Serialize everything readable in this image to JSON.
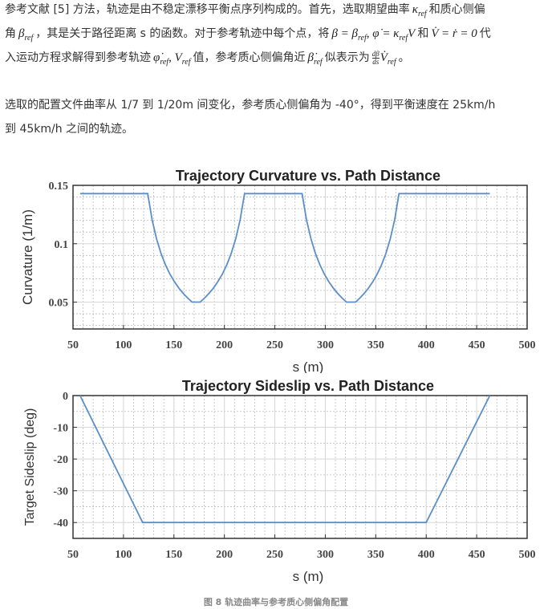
{
  "paragraph1": {
    "l1_text": "参考文献 [5] 方法，轨迹是由不稳定漂移平衡点序列构成的。首先，选取期望曲率",
    "kappa": "κ",
    "ref": "ref",
    "l1_tail": "和质心侧偏",
    "l2_head": "角",
    "beta": "β",
    "l2_text": "，其是关于路径距离 s 的函数。对于参考轨迹中每个点，将",
    "eq1_a": "β = β",
    "eq1_b": ", φ̇ = κ",
    "eq1_c": "V",
    "l2_and": "和",
    "eq2": "V̇ = ṙ = 0",
    "l2_tail": "代",
    "l3_head": "入运动方程求解得到参考轨迹",
    "phidot": "φ̇",
    "eq3_sep": ", V",
    "l3_mid": "值，参考质心侧偏角近",
    "betadot": "β̇",
    "l3_mid2": "似表示为",
    "frac_num": "dβ",
    "frac_den": "ds",
    "vdot": "V̇",
    "l3_tail": "。"
  },
  "paragraph2": {
    "line1": "选取的配置文件曲率从 1/7 到 1/20m 间变化，参考质心侧偏角为 -40°，得到平衡速度在 25km/h",
    "line2": "到 45km/h 之间的轨迹。"
  },
  "caption": "图 8 轨迹曲率与参考质心侧偏角配置",
  "chart_data": [
    {
      "type": "line",
      "title": "Trajectory Curvature vs. Path Distance",
      "xlabel": "s (m)",
      "ylabel": "Curvature (1/m)",
      "xlim": [
        50,
        500
      ],
      "ylim": [
        0.027,
        0.15
      ],
      "xticks": [
        "50",
        "100",
        "150",
        "200",
        "250",
        "300",
        "350",
        "400",
        "450",
        "500"
      ],
      "yticks": [
        "0.05",
        "0.1",
        "0.15"
      ],
      "grid": true,
      "color": "#5b8fc7",
      "x": [
        57,
        124,
        128.4,
        132.8,
        137.2,
        141.6,
        146,
        150.4,
        154.8,
        159.2,
        163.6,
        168,
        176,
        180.4,
        184.8,
        189.2,
        193.6,
        198,
        202.4,
        206.8,
        211.2,
        215.6,
        220,
        277,
        281.4,
        285.8,
        290.2,
        294.6,
        299,
        303.4,
        307.8,
        312.2,
        316.6,
        321,
        330,
        334.3,
        338.6,
        342.9,
        347.2,
        351.5,
        355.8,
        360.1,
        364.4,
        368.7,
        373,
        463
      ],
      "y": [
        0.1429,
        0.1429,
        0.1205,
        0.1042,
        0.0917,
        0.082,
        0.0741,
        0.0676,
        0.0621,
        0.0575,
        0.0535,
        0.05,
        0.05,
        0.0535,
        0.0575,
        0.0621,
        0.0676,
        0.0741,
        0.082,
        0.0917,
        0.1042,
        0.1205,
        0.1429,
        0.1429,
        0.1205,
        0.1042,
        0.0917,
        0.082,
        0.0741,
        0.0676,
        0.0621,
        0.0575,
        0.0535,
        0.05,
        0.05,
        0.0535,
        0.0575,
        0.0621,
        0.0676,
        0.0741,
        0.082,
        0.0917,
        0.1042,
        0.1205,
        0.1429,
        0.1429
      ]
    },
    {
      "type": "line",
      "title": "Trajectory Sideslip vs. Path Distance",
      "xlabel": "s (m)",
      "ylabel": "Target Sideslip (deg)",
      "xlim": [
        50,
        500
      ],
      "ylim": [
        -45,
        0
      ],
      "xticks": [
        "50",
        "100",
        "150",
        "200",
        "250",
        "300",
        "350",
        "400",
        "450",
        "500"
      ],
      "yticks": [
        "0",
        "-10",
        "-20",
        "-30",
        "-40"
      ],
      "grid": true,
      "color": "#5b8fc7",
      "x": [
        57,
        119,
        400,
        463
      ],
      "y": [
        0,
        -40,
        -40,
        0
      ]
    }
  ]
}
